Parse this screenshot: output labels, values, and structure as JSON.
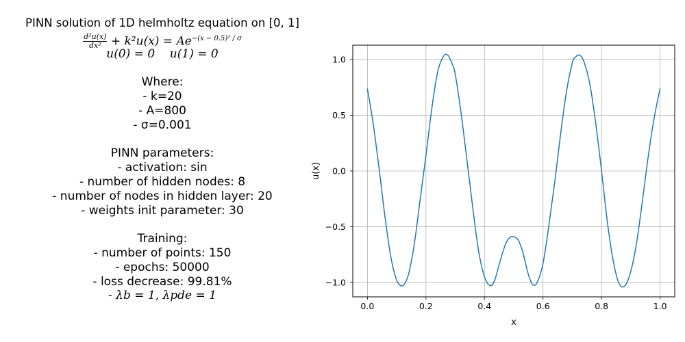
{
  "left_panel": {
    "title": "PINN solution of 1D helmholtz equation on [0, 1]",
    "equation_rhs_base": "+ k²u(x) = Ae",
    "equation_exponent": "−(x − 0.5)² / σ",
    "boundary": "u(0) = 0    u(1) = 0",
    "where_heading": "Where:",
    "params": [
      "- k=20",
      "- A=800",
      "- σ=0.001"
    ],
    "pinn_heading": "PINN parameters:",
    "pinn_params": [
      "- activation: sin",
      "- number of hidden nodes: 8",
      "- number of nodes in hidden layer: 20",
      "- weights init parameter: 30"
    ],
    "training_heading": "Training:",
    "training_params": [
      "- number of points: 150",
      "- epochs: 50000",
      "- loss decrease: 99.81%"
    ],
    "lambda_line": "- λb = 1, λpde = 1"
  },
  "chart_data": {
    "type": "line",
    "title": "",
    "xlabel": "x",
    "ylabel": "u(x)",
    "xlim": [
      -0.05,
      1.05
    ],
    "ylim": [
      -1.13,
      1.13
    ],
    "xticks": [
      0.0,
      0.2,
      0.4,
      0.6,
      0.8,
      1.0
    ],
    "xtick_labels": [
      "0.0",
      "0.2",
      "0.4",
      "0.6",
      "0.8",
      "1.0"
    ],
    "yticks": [
      -1.0,
      -0.5,
      0.0,
      0.5,
      1.0
    ],
    "ytick_labels": [
      "−1.0",
      "−0.5",
      "0.0",
      "0.5",
      "1.0"
    ],
    "grid": true,
    "series": [
      {
        "color": "#1f77b4",
        "x": [
          0.0,
          0.02,
          0.04,
          0.06,
          0.08,
          0.1,
          0.12,
          0.14,
          0.16,
          0.18,
          0.2,
          0.22,
          0.24,
          0.26,
          0.275,
          0.29,
          0.3,
          0.32,
          0.34,
          0.36,
          0.38,
          0.4,
          0.42,
          0.435,
          0.45,
          0.47,
          0.485,
          0.5,
          0.515,
          0.53,
          0.55,
          0.565,
          0.58,
          0.6,
          0.62,
          0.64,
          0.66,
          0.68,
          0.7,
          0.71,
          0.725,
          0.74,
          0.76,
          0.78,
          0.8,
          0.82,
          0.84,
          0.86,
          0.88,
          0.9,
          0.92,
          0.94,
          0.96,
          0.98,
          1.0
        ],
        "y": [
          0.74,
          0.42,
          0.02,
          -0.41,
          -0.77,
          -0.98,
          -1.03,
          -0.93,
          -0.66,
          -0.26,
          0.14,
          0.56,
          0.89,
          1.03,
          1.04,
          0.96,
          0.87,
          0.52,
          0.1,
          -0.33,
          -0.72,
          -0.95,
          -1.03,
          -0.98,
          -0.84,
          -0.67,
          -0.6,
          -0.59,
          -0.62,
          -0.72,
          -0.93,
          -1.02,
          -1.0,
          -0.83,
          -0.49,
          -0.1,
          0.33,
          0.71,
          0.97,
          1.02,
          1.04,
          0.98,
          0.78,
          0.43,
          0.0,
          -0.46,
          -0.81,
          -1.01,
          -1.03,
          -0.9,
          -0.64,
          -0.26,
          0.14,
          0.48,
          0.74
        ]
      }
    ]
  }
}
